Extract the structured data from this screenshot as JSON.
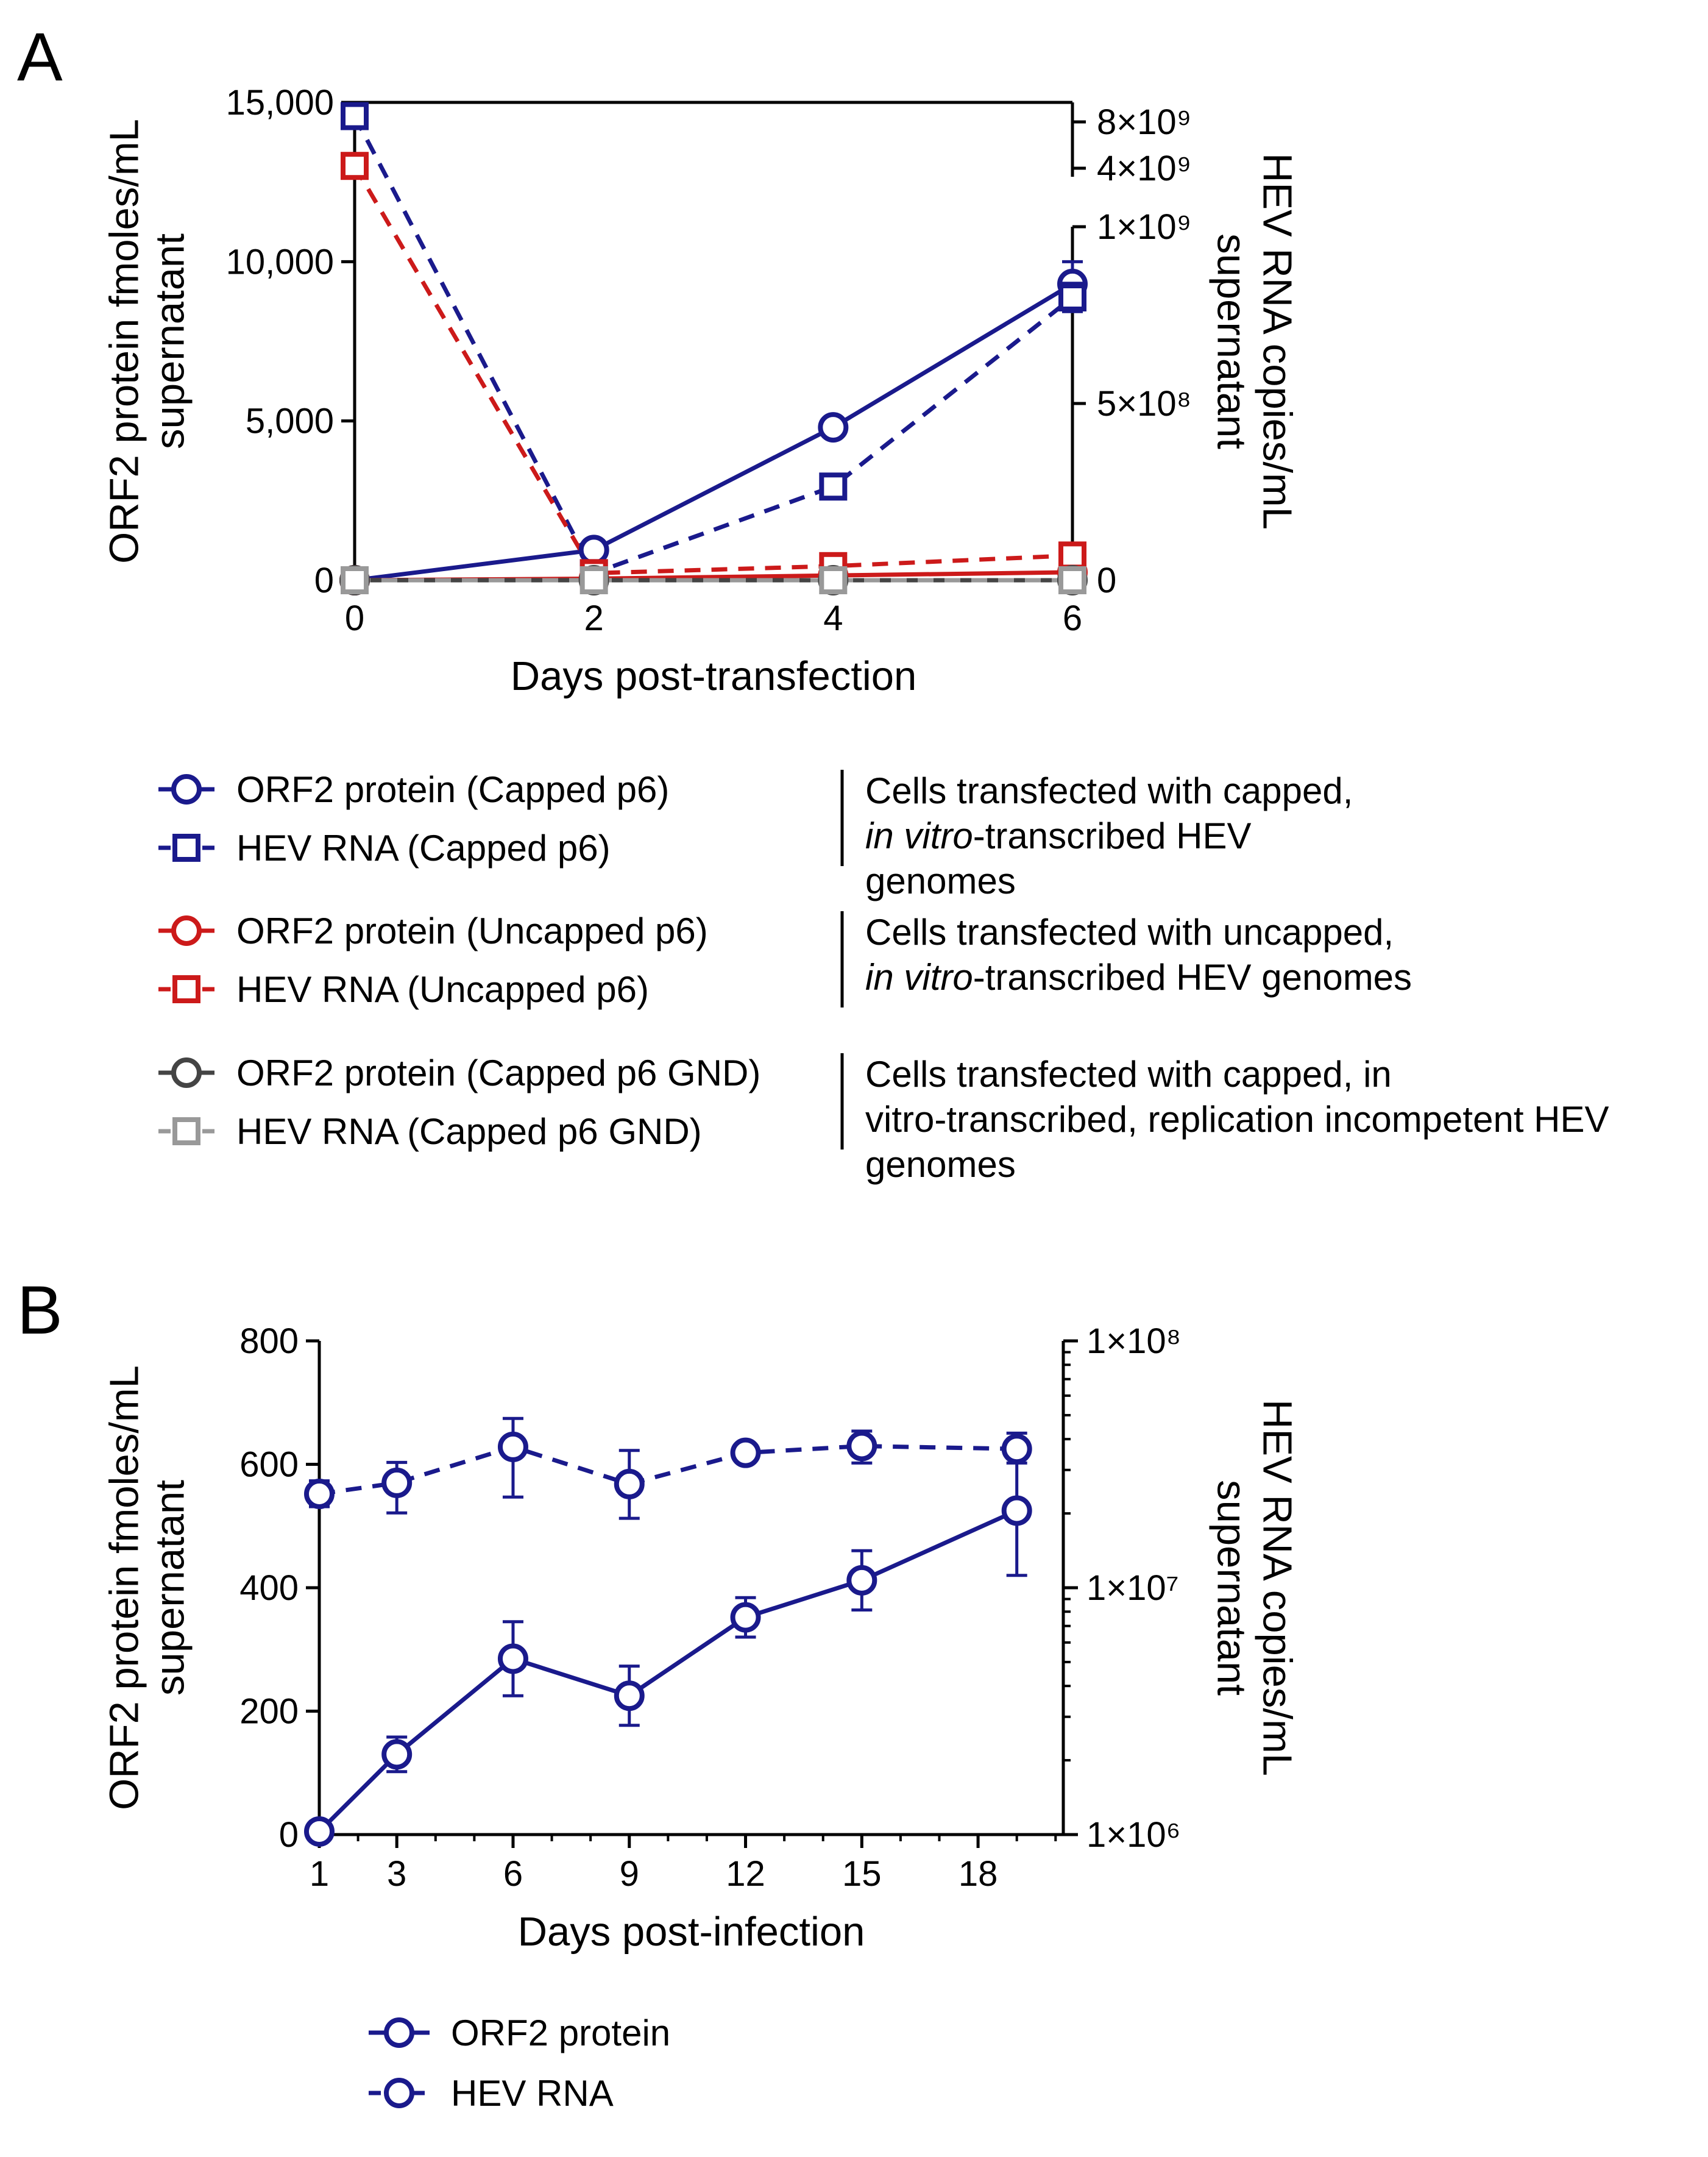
{
  "chart_data": [
    {
      "panel": "A",
      "type": "line",
      "xlabel": "Days post-transfection",
      "ylabel": [
        "ORF2 protein fmoles/mL",
        "supernatant"
      ],
      "y2label": [
        "HEV RNA copies/mL",
        "supernatant"
      ],
      "x_ticks": [
        "0",
        "2",
        "4",
        "6"
      ],
      "y_ticks": [
        "0",
        "5,000",
        "10,000",
        "15,000"
      ],
      "y2_ticks_lower": [
        "0",
        "5×10⁸",
        "1×10⁹"
      ],
      "y2_ticks_upper": [
        "4×10⁹",
        "8×10⁹"
      ],
      "xlim": [
        0,
        6
      ],
      "ylim": [
        0,
        15000
      ],
      "y2_break": "segmented right axis: 0–1×10⁹ linear below, 4×10⁹–8×10⁹ above",
      "series": [
        {
          "name": "ORF2 protein (Capped p6)",
          "axis": "left",
          "color": "#1a1a8c",
          "dash": false,
          "marker": "circle",
          "x": [
            0,
            2,
            4,
            6
          ],
          "y": [
            0,
            950,
            4800,
            9300
          ],
          "err": [
            0,
            100,
            250,
            700
          ]
        },
        {
          "name": "HEV RNA (Capped p6)",
          "axis": "right",
          "color": "#1a1a8c",
          "dash": true,
          "marker": "square",
          "x": [
            0,
            2,
            4,
            6
          ],
          "y": [
            8500000000,
            20000000,
            265000000,
            800000000
          ],
          "err": [
            0,
            5000000,
            30000000,
            40000000
          ]
        },
        {
          "name": "ORF2 protein (Uncapped p6)",
          "axis": "left",
          "color": "#cc1a1a",
          "dash": false,
          "marker": "circle",
          "x": [
            0,
            2,
            4,
            6
          ],
          "y": [
            0,
            50,
            150,
            250
          ],
          "err": [
            0,
            0,
            0,
            0
          ]
        },
        {
          "name": "HEV RNA (Uncapped p6)",
          "axis": "right",
          "color": "#cc1a1a",
          "dash": true,
          "marker": "square",
          "x": [
            0,
            2,
            4,
            6
          ],
          "y": [
            4200000000,
            20000000,
            40000000,
            70000000
          ],
          "err": [
            0,
            0,
            0,
            0
          ]
        },
        {
          "name": "ORF2 protein (Capped p6 GND)",
          "axis": "left",
          "color": "#444444",
          "dash": false,
          "marker": "circle",
          "x": [
            0,
            2,
            4,
            6
          ],
          "y": [
            0,
            0,
            0,
            0
          ],
          "err": [
            0,
            0,
            0,
            0
          ]
        },
        {
          "name": "HEV RNA (Capped p6 GND)",
          "axis": "right",
          "color": "#999999",
          "dash": true,
          "marker": "square",
          "x": [
            0,
            2,
            4,
            6
          ],
          "y": [
            0,
            0,
            0,
            0
          ],
          "err": [
            0,
            0,
            0,
            0
          ]
        }
      ],
      "legend_groups": [
        {
          "items": [
            "ORF2 protein (Capped p6)",
            "HEV RNA (Capped p6)"
          ],
          "note": [
            {
              "t": "Cells transfected with capped,",
              "i": ""
            },
            {
              "t": "-transcribed HEV",
              "i": "in vitro"
            },
            {
              "t": "genomes",
              "i": ""
            }
          ]
        },
        {
          "items": [
            "ORF2 protein (Uncapped p6)",
            "HEV RNA (Uncapped p6)"
          ],
          "note": [
            {
              "t": "Cells transfected with uncapped,",
              "i": ""
            },
            {
              "t": "-transcribed HEV genomes",
              "i": "in vitro"
            }
          ]
        },
        {
          "items": [
            "ORF2 protein (Capped p6 GND)",
            "HEV RNA (Capped p6 GND)"
          ],
          "note": [
            {
              "t": "Cells transfected with capped, in",
              "i": ""
            },
            {
              "t": "vitro-transcribed, replication incompetent HEV",
              "i": ""
            },
            {
              "t": "genomes",
              "i": ""
            }
          ]
        }
      ]
    },
    {
      "panel": "B",
      "type": "line",
      "xlabel": "Days post-infection",
      "ylabel": [
        "ORF2 protein fmoles/mL",
        "supernatant"
      ],
      "y2label": [
        "HEV  RNA copies/mL",
        "supernatant"
      ],
      "x_ticks": [
        "1",
        "3",
        "6",
        "9",
        "12",
        "15",
        "18"
      ],
      "y_ticks": [
        "0",
        "200",
        "400",
        "600",
        "800"
      ],
      "y2_ticks": [
        "1×10⁶",
        "1×10⁷",
        "1×10⁸"
      ],
      "xlim": [
        1,
        20.2
      ],
      "ylim": [
        0,
        800
      ],
      "y2lim": [
        1000000,
        100000000
      ],
      "y2_scale": "log",
      "series": [
        {
          "name": "ORF2 protein",
          "axis": "left",
          "color": "#1a1a8c",
          "dash": false,
          "marker": "circle",
          "x": [
            1,
            3,
            6,
            9,
            12,
            15,
            19
          ],
          "y": [
            5,
            130,
            285,
            225,
            352,
            412,
            525
          ],
          "err": [
            0,
            28,
            60,
            48,
            32,
            48,
            105
          ]
        },
        {
          "name": "HEV RNA",
          "axis": "right",
          "color": "#1a1a8c",
          "dash": true,
          "marker": "circle",
          "x": [
            1,
            3,
            6,
            9,
            12,
            15,
            19
          ],
          "y": [
            24000000,
            26600000,
            37200000,
            26300000,
            35200000,
            37500000,
            36500000
          ],
          "err_low": [
            21300000,
            20100000,
            23300000,
            19100000,
            33100000,
            32000000,
            32000000
          ],
          "err_high": [
            27100000,
            32200000,
            48500000,
            36000000,
            37500000,
            43100000,
            42300000
          ]
        }
      ]
    }
  ]
}
